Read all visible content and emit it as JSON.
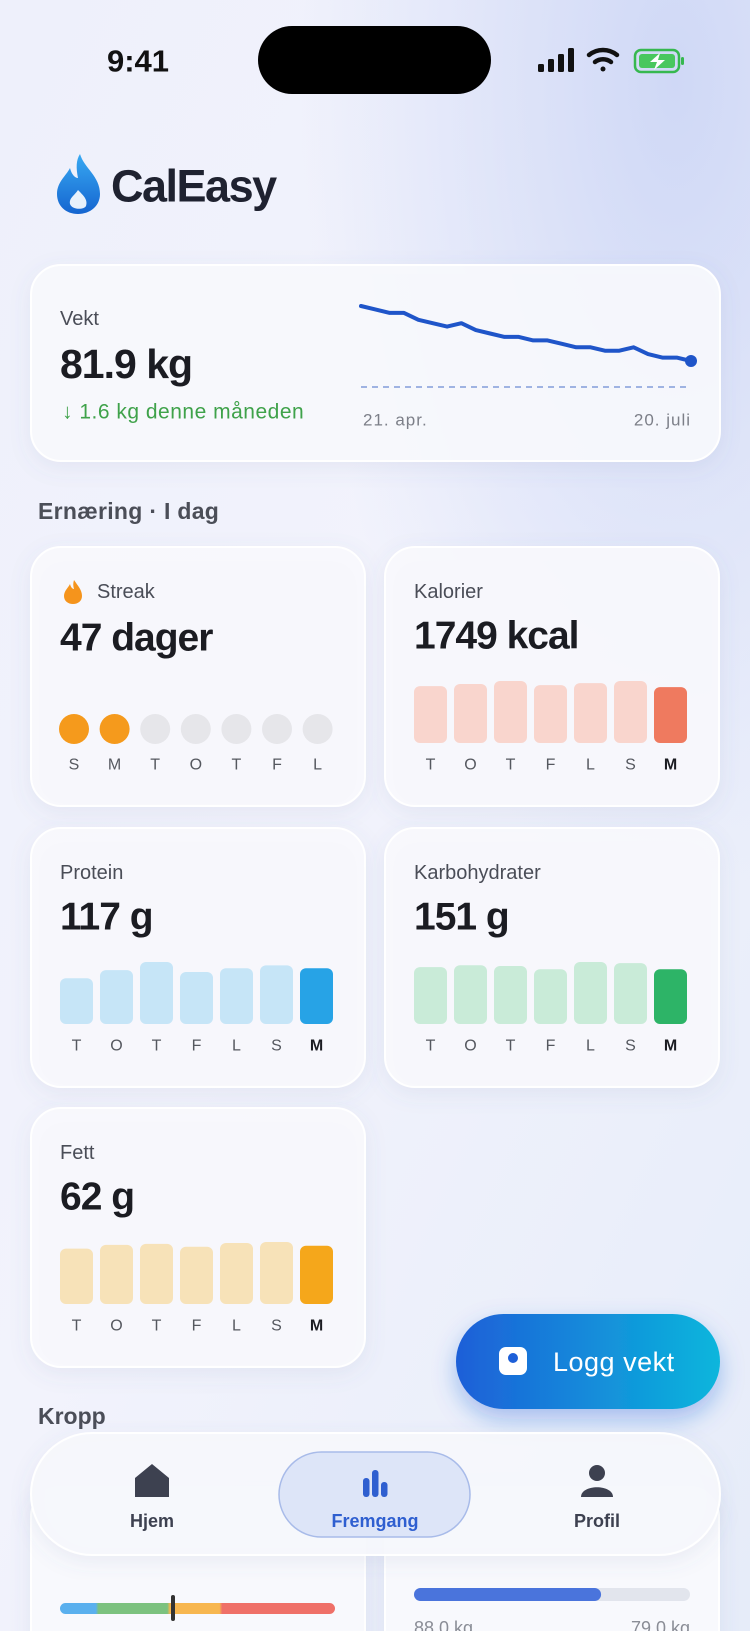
{
  "status_bar": {
    "time": "9:41"
  },
  "app_name": "CalEasy",
  "section_title": "Ernæring · I dag",
  "chart_data": [
    {
      "type": "line",
      "title": "Vekt",
      "current_label": "81.9 kg",
      "change": "↓ 1.6 kg denne måneden",
      "categories": [
        "21. apr.",
        null,
        null,
        null,
        null,
        null,
        null,
        null,
        null,
        null,
        null,
        null,
        null,
        null,
        null,
        null,
        null,
        null,
        null,
        null,
        null,
        null,
        null,
        "20. juli"
      ],
      "values": [
        83.5,
        83.4,
        83.3,
        83.3,
        83.1,
        83.0,
        82.9,
        83.0,
        82.8,
        82.7,
        82.6,
        82.6,
        82.5,
        82.5,
        82.4,
        82.3,
        82.3,
        82.2,
        82.2,
        82.3,
        82.1,
        82.0,
        82.0,
        81.9
      ],
      "color": "#1f55c9"
    },
    {
      "type": "bar",
      "title": "Kalorier",
      "value_label": "1749 kcal",
      "categories": [
        "T",
        "O",
        "T",
        "F",
        "L",
        "S",
        "M"
      ],
      "values": [
        1780,
        1845,
        1940,
        1810,
        1875,
        1940,
        1749
      ],
      "color": "#f9d5cd",
      "highlight_color": "#ef7a5f"
    },
    {
      "type": "bar",
      "title": "Protein",
      "value_label": "117 g",
      "categories": [
        "T",
        "O",
        "T",
        "F",
        "L",
        "S",
        "M"
      ],
      "values": [
        96,
        113,
        130,
        109,
        117,
        123,
        117
      ],
      "color": "#c6e5f7",
      "highlight_color": "#27a3e6"
    },
    {
      "type": "bar",
      "title": "Karbohydrater",
      "value_label": "151 g",
      "categories": [
        "T",
        "O",
        "T",
        "F",
        "L",
        "S",
        "M"
      ],
      "values": [
        157,
        162,
        160,
        151,
        171,
        168,
        151
      ],
      "color": "#c9ebd8",
      "highlight_color": "#2db467"
    },
    {
      "type": "bar",
      "title": "Fett",
      "value_label": "62 g",
      "categories": [
        "T",
        "O",
        "T",
        "F",
        "L",
        "S",
        "M"
      ],
      "values": [
        59,
        63,
        64,
        61,
        65,
        66,
        62
      ],
      "color": "#f7e2b8",
      "highlight_color": "#f5a71b"
    }
  ],
  "streak": {
    "title": "Streak",
    "value": "47 dager",
    "days": [
      {
        "label": "S",
        "done": true
      },
      {
        "label": "M",
        "done": true
      },
      {
        "label": "T",
        "done": false
      },
      {
        "label": "O",
        "done": false
      },
      {
        "label": "T",
        "done": false
      },
      {
        "label": "F",
        "done": false
      },
      {
        "label": "L",
        "done": false
      }
    ]
  },
  "body": {
    "title": "Kropp",
    "goal_progress": {
      "start": {
        "value": 88.0,
        "label": "88.0 kg"
      },
      "goal": {
        "value": 79.0,
        "label": "79.0 kg"
      }
    }
  },
  "fab": {
    "label": "Logg vekt"
  },
  "nav": [
    {
      "label": "Hjem",
      "active": false
    },
    {
      "label": "Fremgang",
      "active": true
    },
    {
      "label": "Profil",
      "active": false
    }
  ]
}
